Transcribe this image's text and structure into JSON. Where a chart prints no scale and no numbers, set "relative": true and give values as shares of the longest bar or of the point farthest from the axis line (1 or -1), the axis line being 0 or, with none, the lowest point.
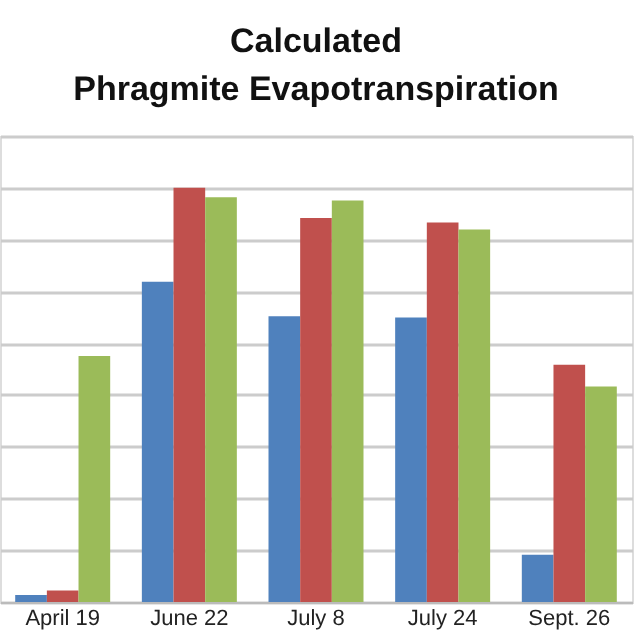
{
  "chart_data": {
    "type": "bar",
    "title": "Calculated Phragmite Evapotranspiration",
    "relative": true,
    "grid": "y",
    "legend": false,
    "categories": [
      "April 19",
      "June 22",
      "July 8",
      "July 24",
      "Sept. 26"
    ],
    "series": [
      {
        "color": "#4f81bd",
        "values": [
          0.017,
          0.773,
          0.69,
          0.687,
          0.114
        ]
      },
      {
        "color": "#c0504d",
        "values": [
          0.028,
          1,
          0.927,
          0.916,
          0.573
        ]
      },
      {
        "color": "#9bbb59",
        "values": [
          0.594,
          0.977,
          0.969,
          0.899,
          0.52
        ]
      }
    ]
  }
}
